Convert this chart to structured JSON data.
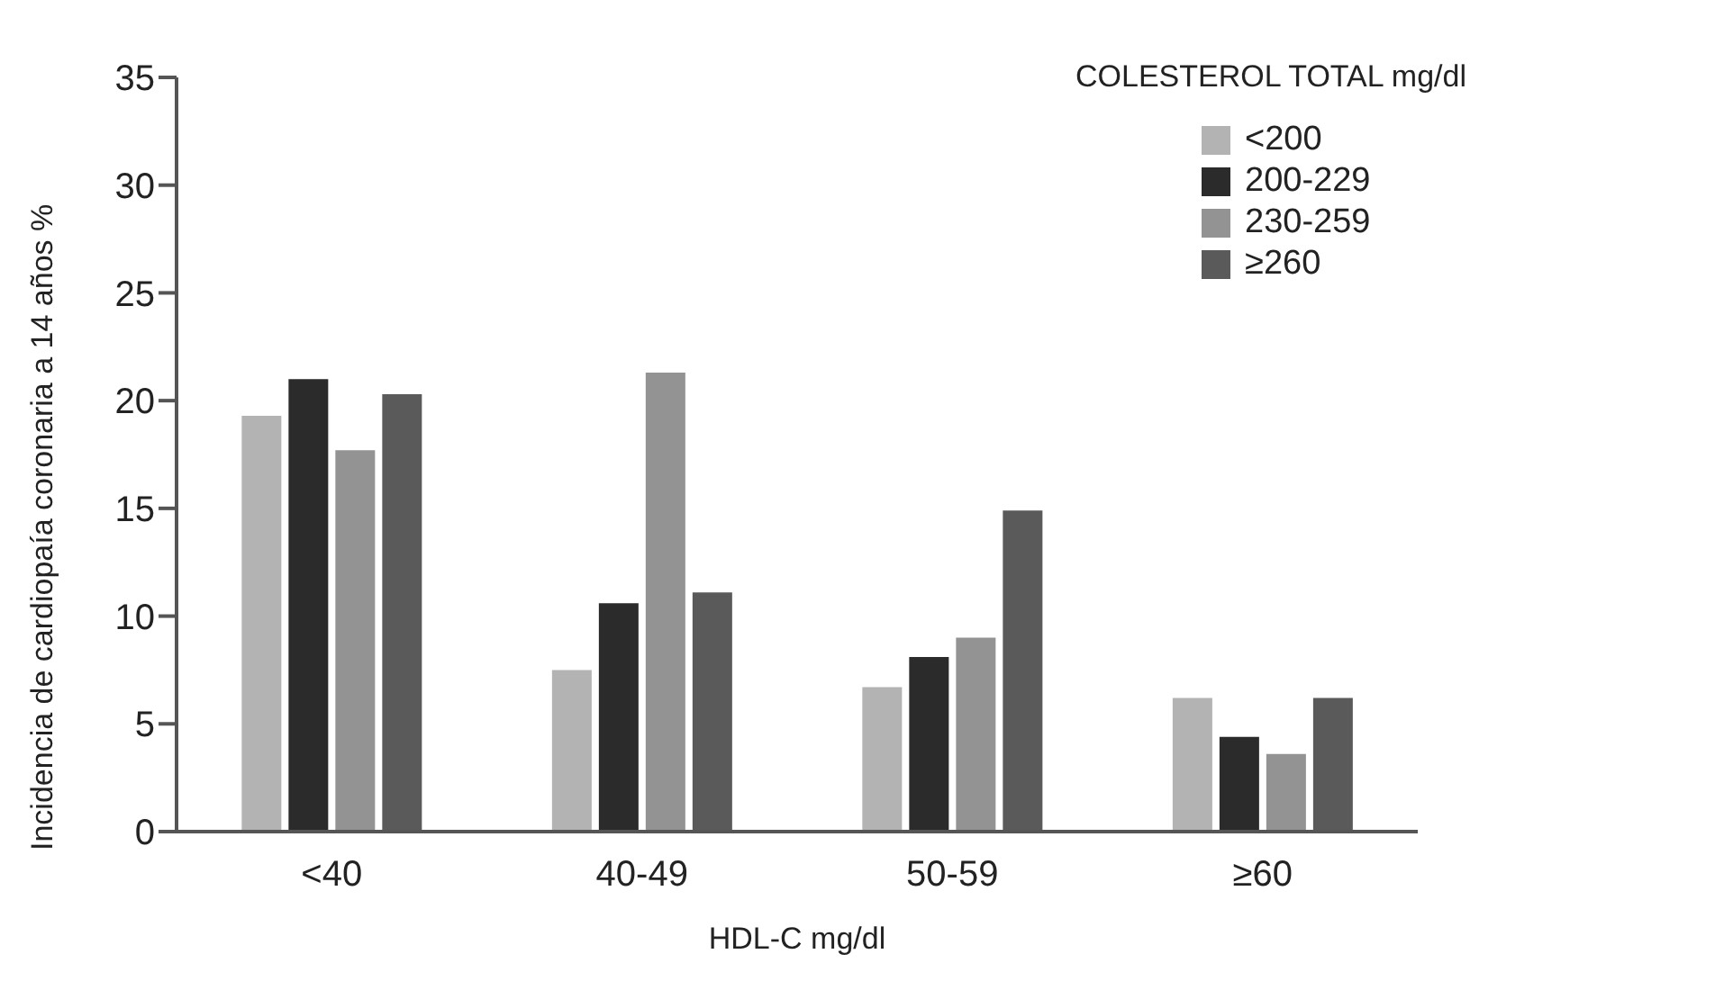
{
  "chart_data": {
    "type": "bar",
    "xlabel": "HDL-C mg/dl",
    "ylabel": "Incidencia de cardiopaía coronaria a 14 años %",
    "legend_title": "COLESTEROL TOTAL mg/dl",
    "legend": "top right",
    "grid": false,
    "categories": [
      "<40",
      "40-49",
      "50-59",
      "≥60"
    ],
    "series": [
      {
        "name": "<200",
        "color": "#b3b3b3",
        "values": [
          19.3,
          7.5,
          6.7,
          6.2
        ]
      },
      {
        "name": "200-229",
        "color": "#2b2b2b",
        "values": [
          21.0,
          10.6,
          8.1,
          4.4
        ]
      },
      {
        "name": "230-259",
        "color": "#939393",
        "values": [
          17.7,
          21.3,
          9.0,
          3.6
        ]
      },
      {
        "name": "≥260",
        "color": "#5a5a5a",
        "values": [
          20.3,
          11.1,
          14.9,
          6.2
        ]
      }
    ],
    "ylim": [
      0,
      35
    ],
    "yticks": [
      0,
      5,
      10,
      15,
      20,
      25,
      30,
      35
    ]
  }
}
